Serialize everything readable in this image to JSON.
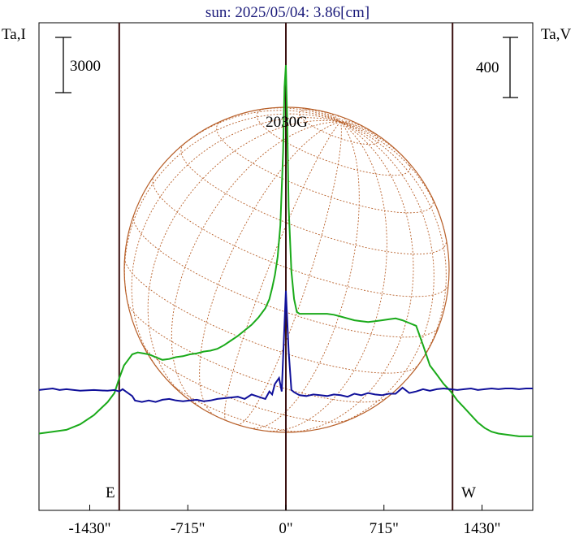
{
  "chart_data": {
    "type": "line",
    "title": "sun: 2025/05/04: 3.86[cm]",
    "y_left_label": "Ta,I",
    "y_right_label": "Ta,V",
    "scale_left_label": "3000",
    "scale_right_label": "400",
    "x_unit": "arcsec",
    "xlim": [
      -1800,
      1800
    ],
    "x_ticks": [
      -1430,
      -715,
      0,
      715,
      1430
    ],
    "x_tick_labels": [
      "-1430\"",
      "-715\"",
      "0\"",
      "715\"",
      "1430\""
    ],
    "limb_lines_x": [
      -1215,
      0,
      1215
    ],
    "east_label": "E",
    "west_label": "W",
    "annotations": [
      {
        "text": "2030G",
        "x": 0
      }
    ],
    "colors": {
      "series_I": "#1aaa1a",
      "series_V": "#10109a",
      "sun_disk": "#b8602a",
      "limb_lines": "#3a1010",
      "title": "#1a1a7a"
    },
    "series": [
      {
        "color": "#1aaa1a",
        "x": [
          -1800,
          -1700,
          -1600,
          -1500,
          -1400,
          -1300,
          -1250,
          -1215,
          -1180,
          -1150,
          -1120,
          -1080,
          -1000,
          -950,
          -900,
          -850,
          -800,
          -750,
          -700,
          -650,
          -600,
          -550,
          -500,
          -450,
          -400,
          -350,
          -300,
          -250,
          -200,
          -150,
          -120,
          -100,
          -80,
          -60,
          -40,
          -20,
          -10,
          0,
          10,
          20,
          40,
          60,
          80,
          100,
          150,
          200,
          250,
          300,
          350,
          400,
          450,
          500,
          550,
          600,
          650,
          700,
          750,
          800,
          850,
          900,
          950,
          1000,
          1050,
          1100,
          1150,
          1200,
          1250,
          1300,
          1350,
          1400,
          1450,
          1500,
          1550,
          1600,
          1650,
          1700,
          1750,
          1800
        ],
        "y": [
          -2800,
          -2700,
          -2600,
          -2300,
          -1800,
          -1100,
          -600,
          200,
          900,
          1200,
          1500,
          1600,
          1500,
          1350,
          1200,
          1250,
          1350,
          1400,
          1500,
          1550,
          1650,
          1700,
          1800,
          2000,
          2250,
          2500,
          2800,
          3100,
          3500,
          4000,
          4500,
          5100,
          5800,
          6800,
          8500,
          12500,
          16000,
          17200,
          14000,
          9500,
          6000,
          4500,
          3800,
          3700,
          3700,
          3700,
          3700,
          3700,
          3650,
          3550,
          3450,
          3350,
          3300,
          3250,
          3300,
          3350,
          3400,
          3450,
          3350,
          3200,
          3050,
          2000,
          900,
          400,
          -100,
          -500,
          -1000,
          -1400,
          -1800,
          -2200,
          -2500,
          -2700,
          -2800,
          -2850,
          -2900,
          -2950,
          -2950,
          -2950
        ]
      },
      {
        "color": "#10109a",
        "x": [
          -1800,
          -1700,
          -1650,
          -1600,
          -1500,
          -1400,
          -1300,
          -1250,
          -1215,
          -1190,
          -1160,
          -1120,
          -1100,
          -1050,
          -1000,
          -950,
          -900,
          -850,
          -800,
          -750,
          -700,
          -650,
          -600,
          -550,
          -500,
          -450,
          -400,
          -350,
          -300,
          -250,
          -200,
          -150,
          -120,
          -100,
          -80,
          -50,
          -30,
          0,
          20,
          40,
          60,
          80,
          100,
          150,
          200,
          250,
          300,
          350,
          400,
          450,
          500,
          550,
          600,
          650,
          700,
          750,
          800,
          850,
          900,
          950,
          1000,
          1050,
          1100,
          1150,
          1200,
          1250,
          1300,
          1350,
          1400,
          1450,
          1500,
          1550,
          1600,
          1650,
          1700,
          1750,
          1800
        ],
        "y": [
          -10,
          0,
          -10,
          -5,
          -15,
          -10,
          -15,
          -10,
          -20,
          -5,
          -25,
          -50,
          -80,
          -90,
          -80,
          -90,
          -75,
          -70,
          -80,
          -85,
          -80,
          -75,
          -85,
          -80,
          -70,
          -65,
          -60,
          -55,
          -70,
          -40,
          -55,
          -70,
          -20,
          -40,
          30,
          70,
          -20,
          650,
          250,
          -10,
          -25,
          -35,
          -45,
          -50,
          -40,
          -45,
          -50,
          -40,
          -45,
          -55,
          -35,
          -45,
          -30,
          -40,
          -45,
          -35,
          -35,
          5,
          -30,
          -20,
          -5,
          -15,
          -5,
          0,
          -5,
          -10,
          -5,
          0,
          -10,
          -5,
          0,
          -5,
          0,
          0,
          -5,
          0,
          0
        ]
      }
    ]
  }
}
